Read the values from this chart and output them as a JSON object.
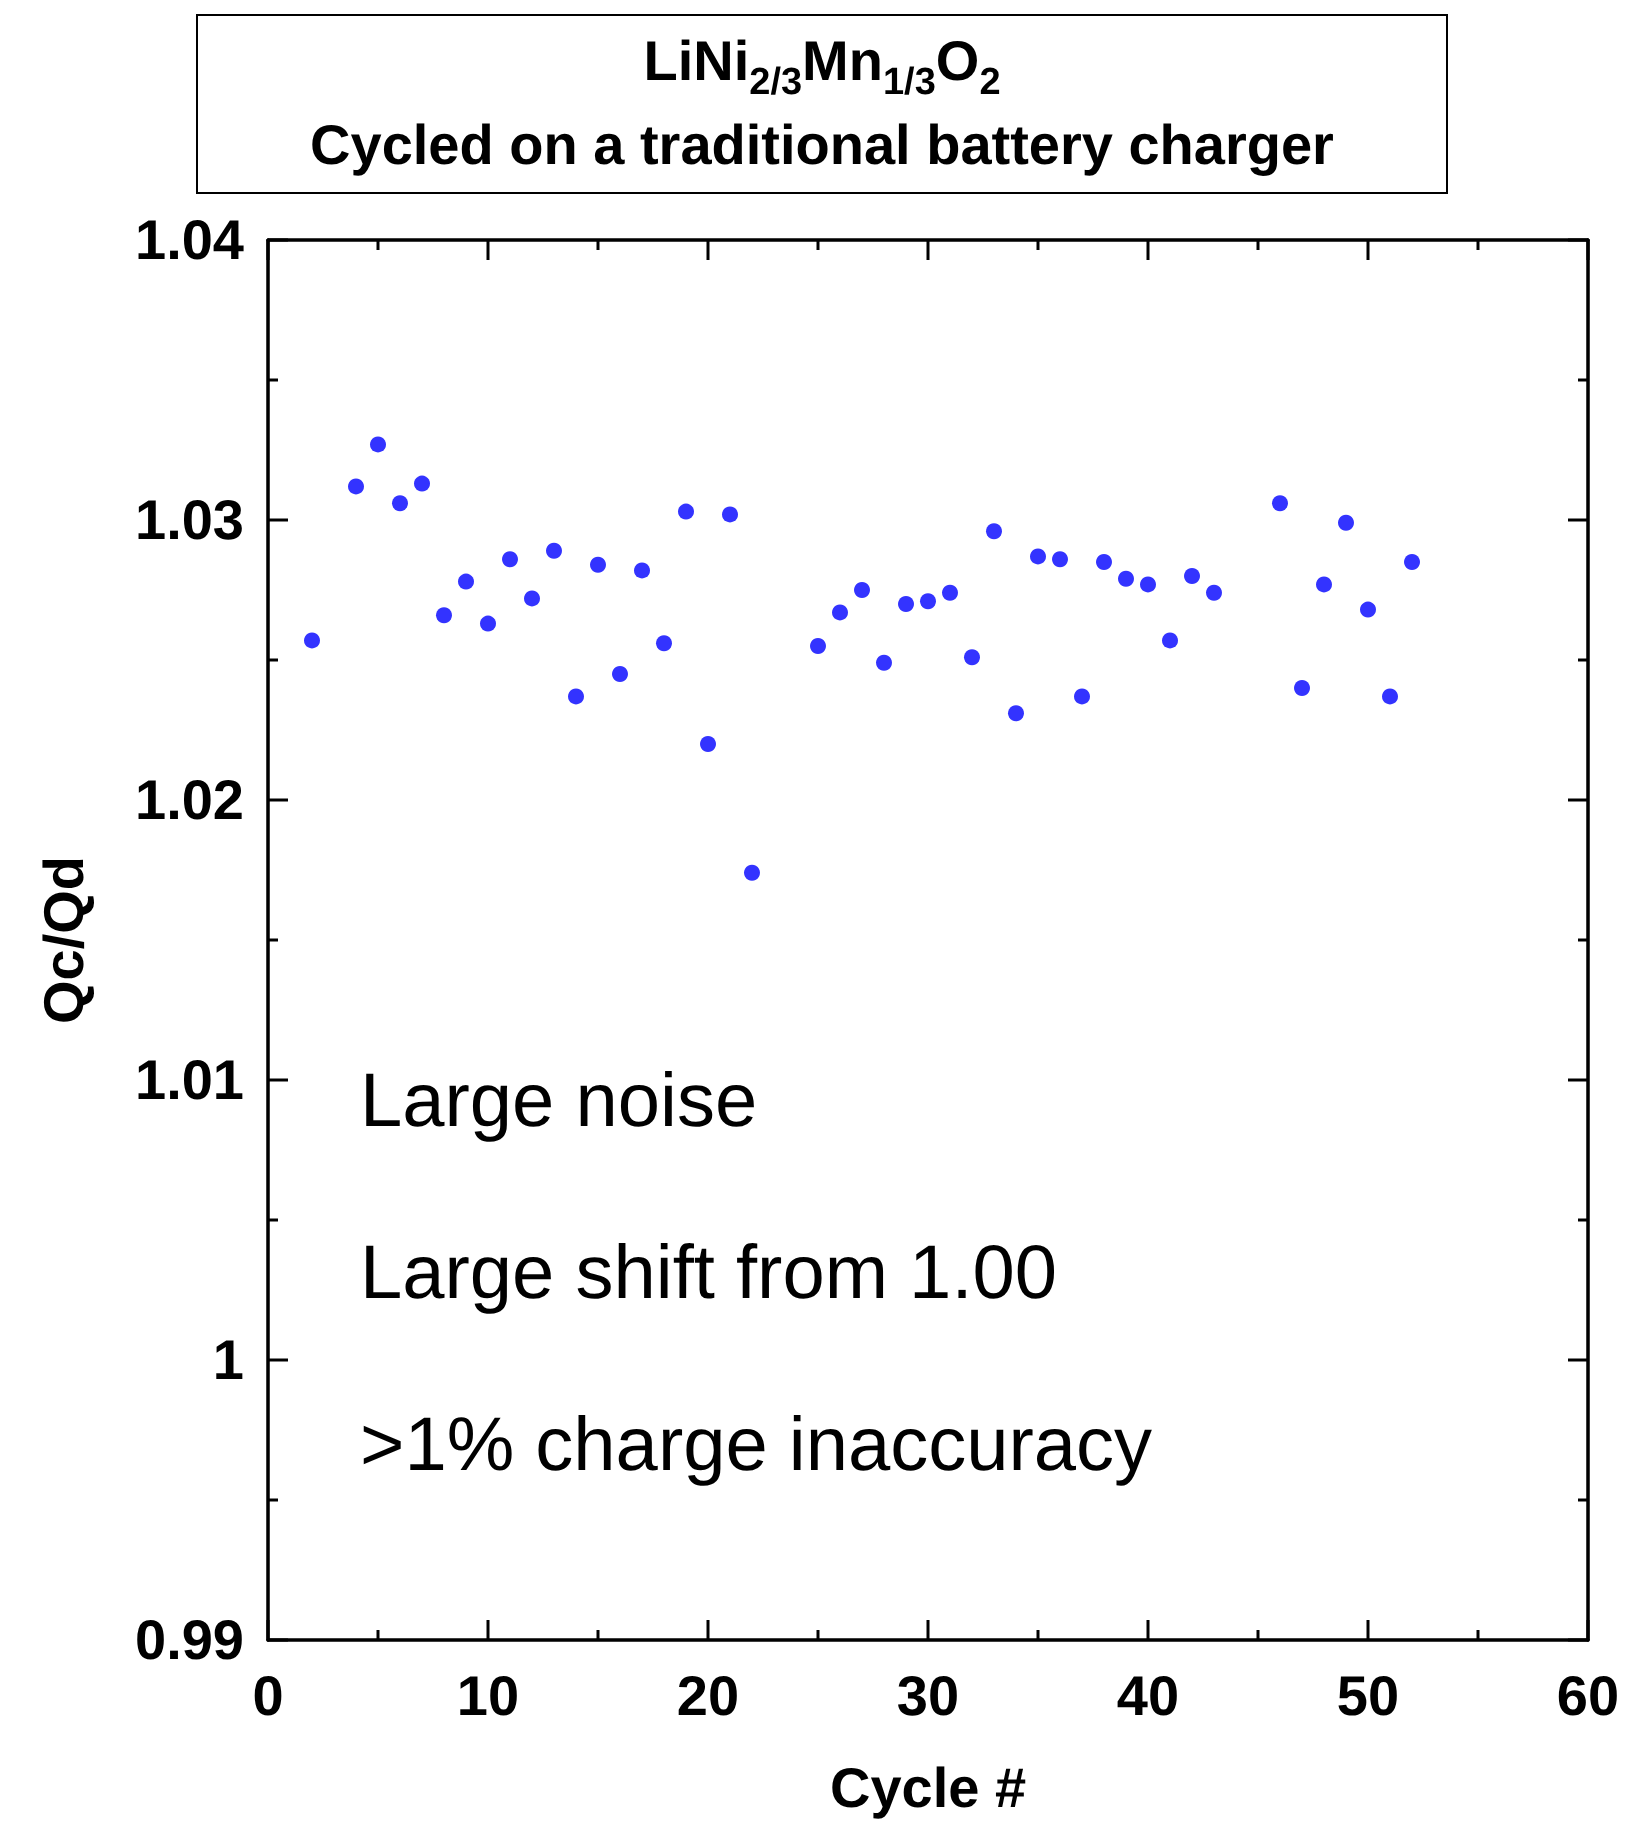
{
  "chart_data": {
    "type": "scatter",
    "title": "LiNi$_{2/3}$Mn$_{1/3}$O$_{2}$",
    "subtitle": "Cycled on a traditional battery charger",
    "xlabel": "Cycle #",
    "ylabel": "Qc/Qd",
    "annotations": [
      "Large noise",
      "Large shift from 1.00",
      ">1% charge inaccuracy"
    ],
    "x": [
      2,
      4,
      5,
      6,
      7,
      8,
      9,
      10,
      11,
      12,
      13,
      14,
      15,
      16,
      17,
      18,
      19,
      20,
      21,
      22,
      25,
      26,
      27,
      28,
      29,
      30,
      31,
      32,
      33,
      34,
      35,
      36,
      37,
      38,
      39,
      40,
      41,
      42,
      43,
      46,
      47,
      48,
      49,
      50,
      51,
      52
    ],
    "values": [
      1.0257,
      1.0312,
      1.0327,
      1.0306,
      1.0313,
      1.0266,
      1.0278,
      1.0263,
      1.0286,
      1.0272,
      1.0289,
      1.0237,
      1.0284,
      1.0245,
      1.0282,
      1.0256,
      1.0303,
      1.022,
      1.0302,
      1.0174,
      1.0255,
      1.0267,
      1.0275,
      1.0249,
      1.027,
      1.0271,
      1.0274,
      1.0251,
      1.0296,
      1.0231,
      1.0287,
      1.0286,
      1.0237,
      1.0285,
      1.0279,
      1.0277,
      1.0257,
      1.028,
      1.0274,
      1.0306,
      1.024,
      1.0277,
      1.0299,
      1.0268,
      1.0237,
      1.0285
    ],
    "color": "#0000ff",
    "marker": "circle",
    "xlim": [
      0,
      60
    ],
    "xticks": [
      0,
      {
        "value": 5,
        "label": null
      },
      10,
      {
        "value": 15,
        "label": null
      },
      20,
      {
        "value": 25,
        "label": null
      },
      30,
      {
        "value": 35,
        "label": null
      },
      40,
      {
        "value": 45,
        "label": null
      },
      50,
      {
        "value": 55,
        "label": null
      },
      60
    ],
    "ylim": [
      0.99,
      1.04
    ],
    "yticks": [
      0.99,
      {
        "value": 0.995,
        "label": null
      },
      1,
      {
        "value": 1.005,
        "label": null
      },
      1.01,
      {
        "value": 1.015,
        "label": null
      },
      1.02,
      {
        "value": 1.025,
        "label": null
      },
      1.03,
      {
        "value": 1.035,
        "label": null
      },
      1.04
    ]
  }
}
